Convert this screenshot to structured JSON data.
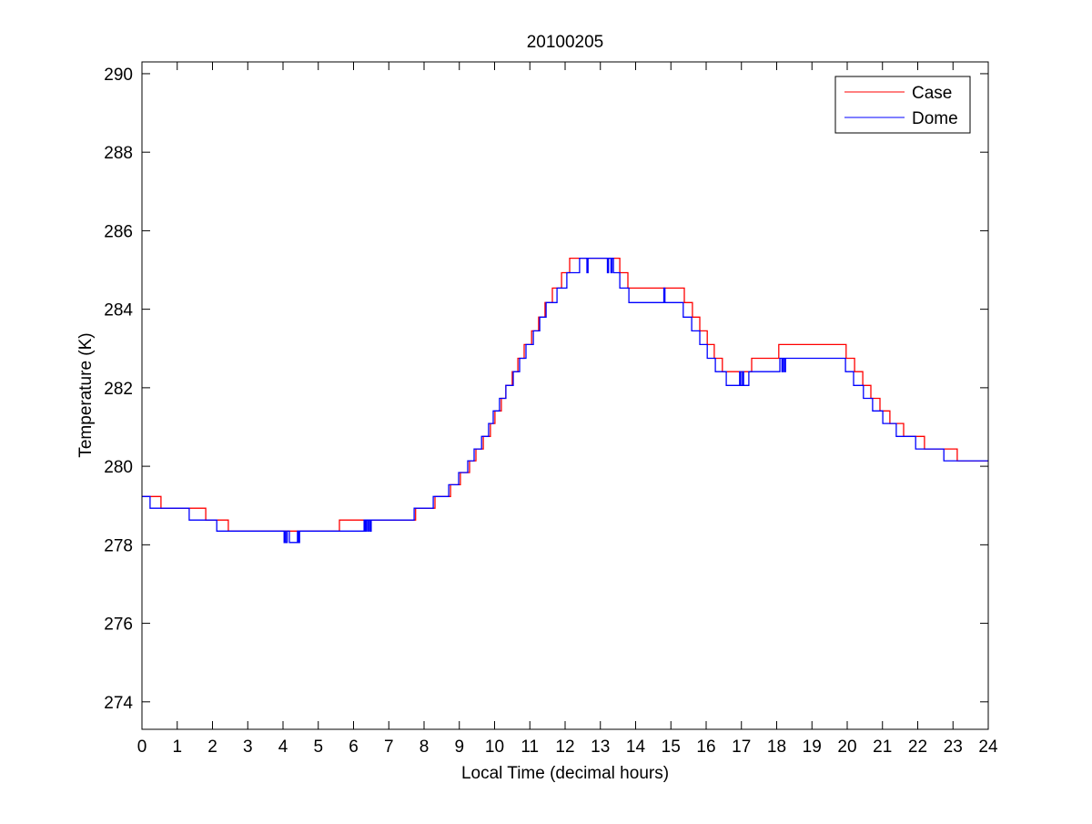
{
  "chart_data": {
    "type": "line",
    "title": "20100205",
    "xlabel": "Local Time (decimal hours)",
    "ylabel": "Temperature (K)",
    "xlim": [
      0,
      24
    ],
    "ylim": [
      273.3,
      290.3
    ],
    "xticks": [
      0,
      1,
      2,
      3,
      4,
      5,
      6,
      7,
      8,
      9,
      10,
      11,
      12,
      13,
      14,
      15,
      16,
      17,
      18,
      19,
      20,
      21,
      22,
      23,
      24
    ],
    "yticks": [
      274,
      276,
      278,
      280,
      282,
      284,
      286,
      288,
      290
    ],
    "grid": false,
    "legend_position": "top-right",
    "step": true,
    "series": [
      {
        "name": "Case",
        "color": "#ff0000",
        "points": [
          [
            0,
            279.23
          ],
          [
            0.54,
            278.93
          ],
          [
            1.81,
            278.63
          ],
          [
            2.45,
            278.35
          ],
          [
            5.6,
            278.63
          ],
          [
            7.76,
            278.93
          ],
          [
            8.31,
            279.23
          ],
          [
            8.75,
            279.53
          ],
          [
            9.03,
            279.84
          ],
          [
            9.29,
            280.14
          ],
          [
            9.47,
            280.44
          ],
          [
            9.68,
            280.76
          ],
          [
            9.88,
            281.09
          ],
          [
            10.01,
            281.41
          ],
          [
            10.19,
            281.73
          ],
          [
            10.32,
            282.06
          ],
          [
            10.5,
            282.41
          ],
          [
            10.66,
            282.75
          ],
          [
            10.84,
            283.1
          ],
          [
            11.05,
            283.45
          ],
          [
            11.25,
            283.8
          ],
          [
            11.43,
            284.17
          ],
          [
            11.64,
            284.54
          ],
          [
            11.9,
            284.93
          ],
          [
            12.13,
            285.3
          ],
          [
            13.55,
            284.93
          ],
          [
            13.78,
            284.54
          ],
          [
            15.38,
            284.17
          ],
          [
            15.61,
            283.8
          ],
          [
            15.82,
            283.45
          ],
          [
            16.03,
            283.1
          ],
          [
            16.23,
            282.75
          ],
          [
            16.46,
            282.41
          ],
          [
            17.29,
            282.75
          ],
          [
            18.06,
            283.1
          ],
          [
            19.97,
            282.75
          ],
          [
            20.21,
            282.41
          ],
          [
            20.44,
            282.06
          ],
          [
            20.67,
            281.73
          ],
          [
            20.93,
            281.41
          ],
          [
            21.21,
            281.09
          ],
          [
            21.6,
            280.76
          ],
          [
            22.19,
            280.44
          ],
          [
            23.12,
            280.14
          ],
          [
            24,
            280.14
          ]
        ]
      },
      {
        "name": "Dome",
        "color": "#0000ff",
        "points": [
          [
            0,
            279.23
          ],
          [
            0.23,
            278.93
          ],
          [
            1.34,
            278.63
          ],
          [
            2.12,
            278.35
          ],
          [
            4.03,
            278.06
          ],
          [
            4.06,
            278.35
          ],
          [
            4.08,
            278.06
          ],
          [
            4.12,
            278.35
          ],
          [
            4.18,
            278.06
          ],
          [
            4.41,
            278.35
          ],
          [
            4.44,
            278.06
          ],
          [
            4.47,
            278.35
          ],
          [
            6.3,
            278.63
          ],
          [
            6.33,
            278.35
          ],
          [
            6.36,
            278.63
          ],
          [
            6.4,
            278.35
          ],
          [
            6.43,
            278.63
          ],
          [
            6.47,
            278.35
          ],
          [
            6.5,
            278.63
          ],
          [
            7.72,
            278.93
          ],
          [
            8.26,
            279.23
          ],
          [
            8.7,
            279.53
          ],
          [
            8.98,
            279.84
          ],
          [
            9.24,
            280.14
          ],
          [
            9.42,
            280.44
          ],
          [
            9.63,
            280.76
          ],
          [
            9.83,
            281.09
          ],
          [
            9.96,
            281.41
          ],
          [
            10.14,
            281.73
          ],
          [
            10.32,
            282.06
          ],
          [
            10.53,
            282.41
          ],
          [
            10.71,
            282.75
          ],
          [
            10.89,
            283.1
          ],
          [
            11.1,
            283.45
          ],
          [
            11.28,
            283.8
          ],
          [
            11.46,
            284.17
          ],
          [
            11.77,
            284.54
          ],
          [
            12.05,
            284.93
          ],
          [
            12.41,
            285.3
          ],
          [
            12.62,
            284.93
          ],
          [
            12.65,
            285.3
          ],
          [
            13.2,
            284.93
          ],
          [
            13.23,
            285.3
          ],
          [
            13.3,
            284.93
          ],
          [
            13.33,
            285.3
          ],
          [
            13.37,
            284.93
          ],
          [
            13.55,
            284.54
          ],
          [
            13.81,
            284.17
          ],
          [
            14.8,
            284.54
          ],
          [
            14.83,
            284.17
          ],
          [
            15.35,
            283.8
          ],
          [
            15.59,
            283.45
          ],
          [
            15.82,
            283.1
          ],
          [
            16.03,
            282.75
          ],
          [
            16.26,
            282.41
          ],
          [
            16.57,
            282.06
          ],
          [
            16.95,
            282.41
          ],
          [
            16.98,
            282.06
          ],
          [
            17.03,
            282.41
          ],
          [
            17.06,
            282.06
          ],
          [
            17.21,
            282.41
          ],
          [
            18.09,
            282.75
          ],
          [
            18.15,
            282.41
          ],
          [
            18.18,
            282.75
          ],
          [
            18.22,
            282.41
          ],
          [
            18.25,
            282.75
          ],
          [
            19.95,
            282.41
          ],
          [
            20.18,
            282.06
          ],
          [
            20.46,
            281.73
          ],
          [
            20.72,
            281.41
          ],
          [
            21.01,
            281.09
          ],
          [
            21.39,
            280.76
          ],
          [
            21.94,
            280.44
          ],
          [
            22.74,
            280.14
          ],
          [
            24,
            280.14
          ]
        ]
      }
    ]
  }
}
